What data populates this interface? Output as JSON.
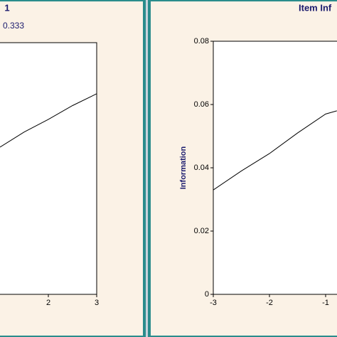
{
  "chart_data": [
    {
      "type": "line",
      "title": "1",
      "subtitle": "0.333",
      "x": [
        1,
        1.5,
        2,
        2.5,
        3
      ],
      "values": [
        0.585,
        0.645,
        0.695,
        0.75,
        0.797
      ],
      "color": "#000000",
      "xlim": [
        -3,
        3
      ],
      "xticks": [
        2,
        3
      ],
      "ylim": [
        0,
        1
      ]
    },
    {
      "type": "line",
      "title": "Item Inf",
      "y_label": "Information",
      "x": [
        -3,
        -2.5,
        -2,
        -1.5,
        -1,
        -0.8
      ],
      "values": [
        0.033,
        0.039,
        0.0445,
        0.051,
        0.057,
        0.058
      ],
      "color": "#000000",
      "xlim": [
        -3,
        3
      ],
      "xticks": [
        -3,
        -2,
        -1
      ],
      "ylim": [
        0,
        0.08
      ],
      "yticks": [
        0,
        0.02,
        0.04,
        0.06,
        0.08
      ]
    }
  ]
}
